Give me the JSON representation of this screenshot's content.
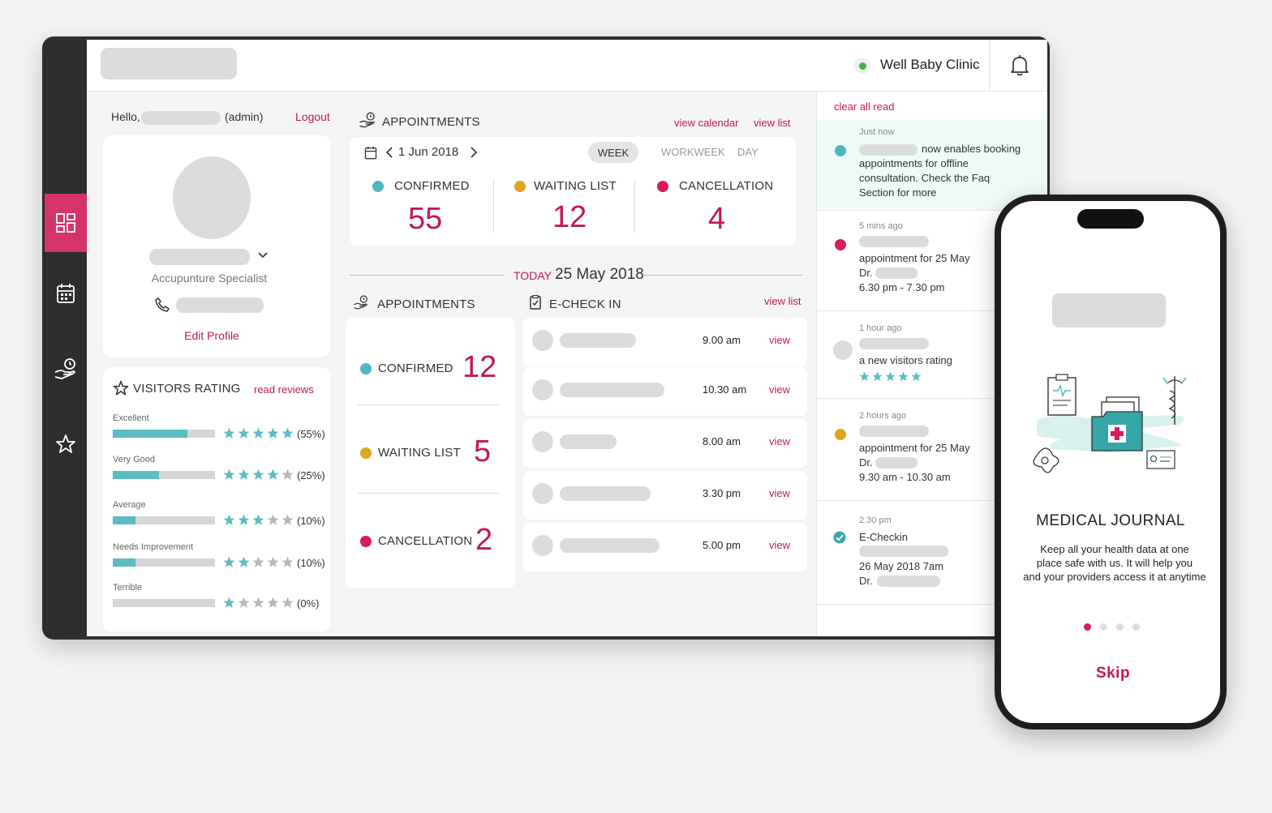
{
  "header": {
    "clinic_name": "Well Baby Clinic",
    "status_color": "#4caf50"
  },
  "sidebar": {
    "items": [
      {
        "icon": "dashboard-icon",
        "active": true
      },
      {
        "icon": "calendar-icon",
        "active": false
      },
      {
        "icon": "hand-clock-icon",
        "active": false
      },
      {
        "icon": "star-icon",
        "active": false
      }
    ]
  },
  "profile": {
    "greeting": "Hello,",
    "role": "(admin)",
    "logout": "Logout",
    "specialty": "Accupunture Specialist",
    "edit": "Edit Profile"
  },
  "rating": {
    "title": "VISITORS RATING",
    "read_reviews": "read reviews",
    "rows": [
      {
        "label": "Excellent",
        "percent_text": "(55%)",
        "fill": 0.73,
        "stars": 5
      },
      {
        "label": "Very Good",
        "percent_text": "(25%)",
        "fill": 0.45,
        "stars": 4
      },
      {
        "label": "Average",
        "percent_text": "(10%)",
        "fill": 0.22,
        "stars": 3
      },
      {
        "label": "Needs Improvement",
        "percent_text": "(10%)",
        "fill": 0.22,
        "stars": 2
      },
      {
        "label": "Terrible",
        "percent_text": "(0%)",
        "fill": 0,
        "stars": 1
      }
    ]
  },
  "appointments": {
    "title": "APPOINTMENTS",
    "view_calendar": "view calendar",
    "view_list": "view list",
    "date": "1 Jun 2018",
    "views": [
      "WEEK",
      "WORKWEEK",
      "DAY"
    ],
    "active_view": "WEEK",
    "stats": [
      {
        "label": "CONFIRMED",
        "value": "55",
        "color": "#4db8c0"
      },
      {
        "label": "WAITING LIST",
        "value": "12",
        "color": "#e0a61f"
      },
      {
        "label": "CANCELLATION",
        "value": "4",
        "color": "#d81b60"
      }
    ]
  },
  "today": {
    "label": "TODAY",
    "date": "25 May 2018"
  },
  "today_appointments": {
    "title": "APPOINTMENTS",
    "stats": [
      {
        "label": "CONFIRMED",
        "value": "12"
      },
      {
        "label": "WAITING LIST",
        "value": "5"
      },
      {
        "label": "CANCELLATION",
        "value": "2"
      }
    ]
  },
  "echeckin": {
    "title": "E-CHECK IN",
    "view_list": "view list",
    "rows": [
      {
        "time": "9.00 am",
        "action": "view"
      },
      {
        "time": "10.30 am",
        "action": "view"
      },
      {
        "time": "8.00 am",
        "action": "view"
      },
      {
        "time": "3.30 pm",
        "action": "view"
      },
      {
        "time": "5.00 pm",
        "action": "view"
      }
    ]
  },
  "notifications": {
    "clear_all": "clear all read",
    "items": [
      {
        "time": "Just now",
        "lines": [
          "now enables booking",
          "appointments for offline",
          "consultation. Check the Faq",
          "Section for more"
        ]
      },
      {
        "time": "5 mins ago",
        "lines": [
          "appointment for 25 May",
          "Dr.",
          "6.30 pm - 7.30 pm"
        ]
      },
      {
        "time": "1 hour ago",
        "lines": [
          "a new visitors rating"
        ]
      },
      {
        "time": "2 hours ago",
        "lines": [
          "appointment for 25 May",
          "Dr.",
          "9.30 am - 10.30 am"
        ]
      },
      {
        "time": "2.30 pm",
        "lines": [
          "E-Checkin",
          "26 May 2018   7am",
          "Dr."
        ]
      }
    ]
  },
  "phone": {
    "title": "MEDICAL JOURNAL",
    "body": [
      "Keep all your health data at one",
      "place safe with us. It will help you",
      "and your providers  access it at anytime"
    ],
    "skip": "Skip",
    "pages": 4,
    "active_page": 1
  }
}
